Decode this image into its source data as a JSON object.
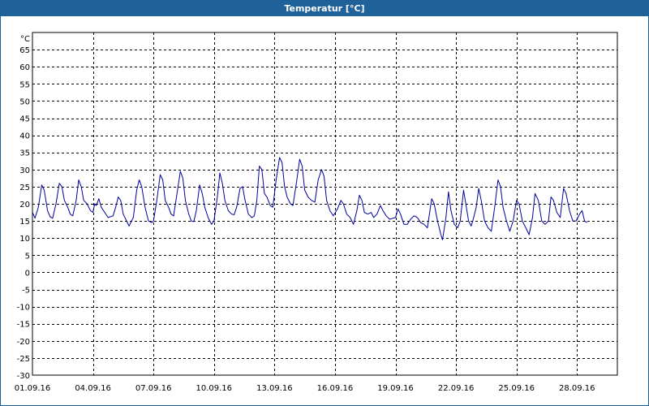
{
  "window": {
    "title": "Temperatur [°C]"
  },
  "colors": {
    "titlebar": "#1e6299",
    "series": "#0000a0",
    "grid": "#000000"
  },
  "chart_data": {
    "type": "line",
    "title": "Temperatur [°C]",
    "ylabel": "°C",
    "ylim": [
      -30,
      70
    ],
    "yticks": [
      65,
      60,
      55,
      50,
      45,
      40,
      35,
      30,
      25,
      20,
      15,
      10,
      5,
      0,
      -5,
      -10,
      -15,
      -20,
      -25,
      -30
    ],
    "xlim": [
      "2016-09-01",
      "2016-09-30"
    ],
    "xticks": [
      {
        "date": "2016-09-01",
        "label": "01.09.16"
      },
      {
        "date": "2016-09-04",
        "label": "04.09.16"
      },
      {
        "date": "2016-09-07",
        "label": "07.09.16"
      },
      {
        "date": "2016-09-10",
        "label": "10.09.16"
      },
      {
        "date": "2016-09-13",
        "label": "13.09.16"
      },
      {
        "date": "2016-09-16",
        "label": "16.09.16"
      },
      {
        "date": "2016-09-19",
        "label": "19.09.16"
      },
      {
        "date": "2016-09-22",
        "label": "22.09.16"
      },
      {
        "date": "2016-09-25",
        "label": "25.09.16"
      },
      {
        "date": "2016-09-28",
        "label": "28.09.16"
      }
    ],
    "grid": true,
    "series": [
      {
        "points": [
          [
            "2016-09-01 00:00",
            17.5
          ],
          [
            "2016-09-01 03:00",
            15.8
          ],
          [
            "2016-09-01 07:00",
            19
          ],
          [
            "2016-09-01 11:00",
            25.5
          ],
          [
            "2016-09-01 14:00",
            24
          ],
          [
            "2016-09-01 18:00",
            18
          ],
          [
            "2016-09-01 21:00",
            16.2
          ],
          [
            "2016-09-02 00:00",
            15.8
          ],
          [
            "2016-09-02 04:00",
            20
          ],
          [
            "2016-09-02 08:00",
            26
          ],
          [
            "2016-09-02 11:00",
            25
          ],
          [
            "2016-09-02 14:00",
            21
          ],
          [
            "2016-09-02 18:00",
            19
          ],
          [
            "2016-09-02 21:00",
            17
          ],
          [
            "2016-09-03 00:00",
            16.5
          ],
          [
            "2016-09-03 04:00",
            21
          ],
          [
            "2016-09-03 07:00",
            27
          ],
          [
            "2016-09-03 10:00",
            25
          ],
          [
            "2016-09-03 13:00",
            21
          ],
          [
            "2016-09-03 17:00",
            20
          ],
          [
            "2016-09-03 21:00",
            18
          ],
          [
            "2016-09-04 00:00",
            17.5
          ],
          [
            "2016-09-04 02:00",
            20
          ],
          [
            "2016-09-04 04:00",
            19.5
          ],
          [
            "2016-09-04 07:00",
            21.5
          ],
          [
            "2016-09-04 10:00",
            19
          ],
          [
            "2016-09-04 14:00",
            17.5
          ],
          [
            "2016-09-04 18:00",
            16
          ],
          [
            "2016-09-05 00:00",
            16.5
          ],
          [
            "2016-09-05 03:00",
            19
          ],
          [
            "2016-09-05 06:00",
            22
          ],
          [
            "2016-09-05 09:00",
            21
          ],
          [
            "2016-09-05 12:00",
            17
          ],
          [
            "2016-09-05 15:00",
            15.5
          ],
          [
            "2016-09-05 19:00",
            13.5
          ],
          [
            "2016-09-06 00:00",
            16
          ],
          [
            "2016-09-06 04:00",
            24
          ],
          [
            "2016-09-06 07:00",
            27
          ],
          [
            "2016-09-06 10:00",
            25
          ],
          [
            "2016-09-06 14:00",
            19
          ],
          [
            "2016-09-06 18:00",
            15
          ],
          [
            "2016-09-06 22:00",
            14.5
          ],
          [
            "2016-09-07 00:00",
            15
          ],
          [
            "2016-09-07 04:00",
            21
          ],
          [
            "2016-09-07 08:00",
            28.5
          ],
          [
            "2016-09-07 11:00",
            27
          ],
          [
            "2016-09-07 14:00",
            21
          ],
          [
            "2016-09-07 18:00",
            19
          ],
          [
            "2016-09-07 21:00",
            17
          ],
          [
            "2016-09-08 00:00",
            16.5
          ],
          [
            "2016-09-08 04:00",
            23
          ],
          [
            "2016-09-08 08:00",
            29.5
          ],
          [
            "2016-09-08 11:00",
            27.5
          ],
          [
            "2016-09-08 14:00",
            21
          ],
          [
            "2016-09-08 18:00",
            17
          ],
          [
            "2016-09-08 21:00",
            15
          ],
          [
            "2016-09-09 00:00",
            14.8
          ],
          [
            "2016-09-09 03:00",
            18
          ],
          [
            "2016-09-09 07:00",
            25.5
          ],
          [
            "2016-09-09 10:00",
            23
          ],
          [
            "2016-09-09 13:00",
            19
          ],
          [
            "2016-09-09 17:00",
            16
          ],
          [
            "2016-09-09 21:00",
            14
          ],
          [
            "2016-09-10 00:00",
            15
          ],
          [
            "2016-09-10 04:00",
            22
          ],
          [
            "2016-09-10 07:00",
            29
          ],
          [
            "2016-09-10 10:00",
            26
          ],
          [
            "2016-09-10 13:00",
            21
          ],
          [
            "2016-09-10 17:00",
            18
          ],
          [
            "2016-09-10 21:00",
            17
          ],
          [
            "2016-09-11 00:00",
            16.8
          ],
          [
            "2016-09-11 03:00",
            19
          ],
          [
            "2016-09-11 07:00",
            24.5
          ],
          [
            "2016-09-11 10:00",
            25
          ],
          [
            "2016-09-11 13:00",
            21
          ],
          [
            "2016-09-11 17:00",
            17
          ],
          [
            "2016-09-11 21:00",
            16
          ],
          [
            "2016-09-12 00:00",
            16.5
          ],
          [
            "2016-09-12 03:00",
            21
          ],
          [
            "2016-09-12 06:00",
            31
          ],
          [
            "2016-09-12 09:00",
            30
          ],
          [
            "2016-09-12 12:00",
            23
          ],
          [
            "2016-09-12 15:00",
            22
          ],
          [
            "2016-09-12 19:00",
            19.5
          ],
          [
            "2016-09-12 22:00",
            19
          ],
          [
            "2016-09-13 02:00",
            27
          ],
          [
            "2016-09-13 06:00",
            33.5
          ],
          [
            "2016-09-13 09:00",
            32
          ],
          [
            "2016-09-13 12:00",
            25
          ],
          [
            "2016-09-13 15:00",
            22
          ],
          [
            "2016-09-13 19:00",
            20
          ],
          [
            "2016-09-13 22:00",
            19.5
          ],
          [
            "2016-09-14 02:00",
            26
          ],
          [
            "2016-09-14 06:00",
            33
          ],
          [
            "2016-09-14 09:00",
            31
          ],
          [
            "2016-09-14 12:00",
            24
          ],
          [
            "2016-09-14 16:00",
            22
          ],
          [
            "2016-09-14 20:00",
            21
          ],
          [
            "2016-09-15 00:00",
            20.5
          ],
          [
            "2016-09-15 04:00",
            27
          ],
          [
            "2016-09-15 08:00",
            30
          ],
          [
            "2016-09-15 11:00",
            28
          ],
          [
            "2016-09-15 14:00",
            21
          ],
          [
            "2016-09-15 18:00",
            18
          ],
          [
            "2016-09-15 22:00",
            16.5
          ],
          [
            "2016-09-16 03:00",
            18.5
          ],
          [
            "2016-09-16 07:00",
            21
          ],
          [
            "2016-09-16 10:00",
            20
          ],
          [
            "2016-09-16 14:00",
            17
          ],
          [
            "2016-09-16 18:00",
            16
          ],
          [
            "2016-09-16 22:00",
            14
          ],
          [
            "2016-09-17 02:00",
            18
          ],
          [
            "2016-09-17 05:00",
            22.5
          ],
          [
            "2016-09-17 08:00",
            21
          ],
          [
            "2016-09-17 11:00",
            17.5
          ],
          [
            "2016-09-17 15:00",
            17
          ],
          [
            "2016-09-17 19:00",
            17.5
          ],
          [
            "2016-09-17 22:00",
            16
          ],
          [
            "2016-09-18 02:00",
            17
          ],
          [
            "2016-09-18 06:00",
            19.5
          ],
          [
            "2016-09-18 09:00",
            18
          ],
          [
            "2016-09-18 13:00",
            16.5
          ],
          [
            "2016-09-18 17:00",
            15.5
          ],
          [
            "2016-09-19 00:00",
            16
          ],
          [
            "2016-09-19 03:00",
            18.5
          ],
          [
            "2016-09-19 06:00",
            17
          ],
          [
            "2016-09-19 10:00",
            14
          ],
          [
            "2016-09-19 14:00",
            14
          ],
          [
            "2016-09-19 18:00",
            15.5
          ],
          [
            "2016-09-19 22:00",
            16.5
          ],
          [
            "2016-09-20 02:00",
            16
          ],
          [
            "2016-09-20 06:00",
            14.5
          ],
          [
            "2016-09-20 10:00",
            14
          ],
          [
            "2016-09-20 14:00",
            13
          ],
          [
            "2016-09-20 19:00",
            21.5
          ],
          [
            "2016-09-20 22:00",
            20
          ],
          [
            "2016-09-21 02:00",
            15
          ],
          [
            "2016-09-21 06:00",
            11
          ],
          [
            "2016-09-21 08:00",
            9.5
          ],
          [
            "2016-09-21 12:00",
            16
          ],
          [
            "2016-09-21 15:00",
            23.5
          ],
          [
            "2016-09-21 18:00",
            18
          ],
          [
            "2016-09-21 22:00",
            14
          ],
          [
            "2016-09-22 02:00",
            13
          ],
          [
            "2016-09-22 05:00",
            15
          ],
          [
            "2016-09-22 09:00",
            24
          ],
          [
            "2016-09-22 11:00",
            21
          ],
          [
            "2016-09-22 15:00",
            15
          ],
          [
            "2016-09-22 18:00",
            13.5
          ],
          [
            "2016-09-22 20:00",
            15
          ],
          [
            "2016-09-23 00:00",
            19
          ],
          [
            "2016-09-23 03:00",
            24.5
          ],
          [
            "2016-09-23 06:00",
            21
          ],
          [
            "2016-09-23 10:00",
            15
          ],
          [
            "2016-09-23 14:00",
            13
          ],
          [
            "2016-09-23 18:00",
            12
          ],
          [
            "2016-09-23 22:00",
            19
          ],
          [
            "2016-09-24 02:00",
            27
          ],
          [
            "2016-09-24 05:00",
            25
          ],
          [
            "2016-09-24 08:00",
            19
          ],
          [
            "2016-09-24 12:00",
            15
          ],
          [
            "2016-09-24 16:00",
            12
          ],
          [
            "2016-09-24 20:00",
            15
          ],
          [
            "2016-09-25 00:00",
            21
          ],
          [
            "2016-09-25 03:00",
            20
          ],
          [
            "2016-09-25 07:00",
            15
          ],
          [
            "2016-09-25 11:00",
            13
          ],
          [
            "2016-09-25 15:00",
            11
          ],
          [
            "2016-09-25 19:00",
            16
          ],
          [
            "2016-09-25 22:00",
            23
          ],
          [
            "2016-09-26 02:00",
            21
          ],
          [
            "2016-09-26 06:00",
            15
          ],
          [
            "2016-09-26 10:00",
            14
          ],
          [
            "2016-09-26 14:00",
            15
          ],
          [
            "2016-09-26 17:00",
            22
          ],
          [
            "2016-09-26 20:00",
            21
          ],
          [
            "2016-09-27 00:00",
            17.5
          ],
          [
            "2016-09-27 04:00",
            16
          ],
          [
            "2016-09-27 08:00",
            24.5
          ],
          [
            "2016-09-27 11:00",
            23
          ],
          [
            "2016-09-27 15:00",
            18
          ],
          [
            "2016-09-27 19:00",
            15
          ],
          [
            "2016-09-27 23:00",
            15
          ],
          [
            "2016-09-28 03:00",
            17
          ],
          [
            "2016-09-28 06:00",
            18
          ],
          [
            "2016-09-28 09:00",
            15
          ],
          [
            "2016-09-28 12:00",
            14.5
          ]
        ]
      }
    ]
  }
}
